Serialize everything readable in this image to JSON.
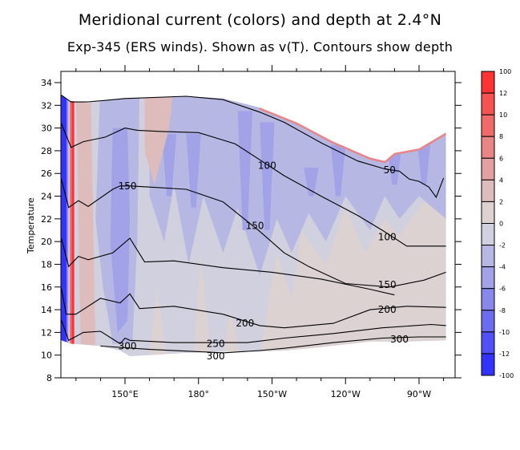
{
  "title": "Meridional current (colors) and depth at 2.4°N",
  "subtitle": "Exp-345 (ERS winds). Shown as v(T). Contours show depth",
  "chart_data": {
    "type": "contour",
    "title": "Meridional current (colors) and depth at 2.4°N",
    "subtitle": "Exp-345 (ERS winds). Shown as v(T). Contours show depth",
    "xlabel": "",
    "ylabel": "Temperature",
    "xlim_deg_east": [
      124,
      281
    ],
    "ylim": [
      8,
      35
    ],
    "x_ticks": [
      {
        "lon": 150,
        "label": "150°E"
      },
      {
        "lon": 180,
        "label": "180°"
      },
      {
        "lon": 210,
        "label": "150°W"
      },
      {
        "lon": 240,
        "label": "120°W"
      },
      {
        "lon": 270,
        "label": "90°W"
      }
    ],
    "x_minor_ticks": [
      130,
      140,
      160,
      170,
      190,
      200,
      220,
      230,
      250,
      260,
      280
    ],
    "y_ticks": [
      8,
      10,
      12,
      14,
      16,
      18,
      20,
      22,
      24,
      26,
      28,
      30,
      32,
      34
    ],
    "colorbar": {
      "labels": [
        "100",
        "12",
        "10",
        "8",
        "6",
        "4",
        "2",
        "0",
        "-2",
        "-4",
        "-6",
        "-8",
        "-10",
        "-12",
        "-100"
      ],
      "colors": [
        "#ff3333",
        "#f65252",
        "#f06a6a",
        "#ea8585",
        "#e3a0a0",
        "#dfbcbc",
        "#dcd2d2",
        "#d0d0de",
        "#b7b7e4",
        "#a2a2e8",
        "#8787ec",
        "#6c6cf1",
        "#5050f6",
        "#3333ff"
      ]
    },
    "field_regions": [
      {
        "level": "0..2",
        "color": "#dcd2d2",
        "note": "background weak northward flow in lower east"
      },
      {
        "level": "-2..0",
        "color": "#d0d0de",
        "note": "dominant background"
      },
      {
        "level": "-4..-2",
        "color": "#b7b7e4",
        "note": "upper central/eastern layer"
      },
      {
        "level": "-6..-4",
        "color": "#a2a2e8",
        "note": "tongues near 150E and 160W-140W"
      },
      {
        "level": "<-12",
        "color": "#3333ff",
        "note": "western boundary strip"
      },
      {
        "level": ">12",
        "color": "#ff3333",
        "note": "western boundary red strip"
      }
    ],
    "surface_top_temperature": [
      [
        124,
        32.9
      ],
      [
        127,
        32.4
      ],
      [
        135,
        32.2
      ],
      [
        150,
        32.6
      ],
      [
        175,
        32.8
      ],
      [
        190,
        32.6
      ],
      [
        205,
        31.8
      ],
      [
        220,
        30.5
      ],
      [
        235,
        28.8
      ],
      [
        250,
        27.4
      ],
      [
        256,
        27.1
      ],
      [
        260,
        27.8
      ],
      [
        270,
        28.2
      ],
      [
        281,
        29.6
      ]
    ],
    "bottom_temperature": [
      [
        124,
        11.3
      ],
      [
        128,
        11.0
      ],
      [
        135,
        10.9
      ],
      [
        140,
        10.8
      ],
      [
        148,
        10.4
      ],
      [
        152,
        9.9
      ],
      [
        160,
        10.0
      ],
      [
        175,
        10.2
      ],
      [
        190,
        10.3
      ],
      [
        205,
        10.3
      ],
      [
        215,
        10.4
      ],
      [
        230,
        10.7
      ],
      [
        250,
        11.2
      ],
      [
        265,
        11.2
      ],
      [
        281,
        11.3
      ]
    ],
    "contours": [
      {
        "depth": 50,
        "points": [
          [
            124,
            32.9
          ],
          [
            128,
            32.3
          ],
          [
            135,
            32.3
          ],
          [
            150,
            32.6
          ],
          [
            175,
            32.8
          ],
          [
            190,
            32.5
          ],
          [
            205,
            31.4
          ],
          [
            215,
            30.5
          ],
          [
            230,
            28.7
          ],
          [
            245,
            27.1
          ],
          [
            256,
            26.4
          ],
          [
            262,
            26.2
          ],
          [
            266,
            25.5
          ],
          [
            270,
            25.3
          ],
          [
            274,
            24.8
          ],
          [
            277,
            23.9
          ],
          [
            280,
            25.6
          ]
        ],
        "labels": [
          {
            "lon": 258,
            "t": 26.3
          }
        ]
      },
      {
        "depth": 100,
        "points": [
          [
            124,
            30.4
          ],
          [
            128,
            28.3
          ],
          [
            133,
            28.8
          ],
          [
            142,
            29.2
          ],
          [
            150,
            30.0
          ],
          [
            155,
            29.8
          ],
          [
            165,
            29.7
          ],
          [
            180,
            29.6
          ],
          [
            195,
            28.6
          ],
          [
            205,
            27.2
          ],
          [
            215,
            25.8
          ],
          [
            230,
            24.0
          ],
          [
            245,
            22.3
          ],
          [
            255,
            21.0
          ],
          [
            265,
            19.6
          ],
          [
            281,
            19.6
          ]
        ],
        "labels": [
          {
            "lon": 208,
            "t": 26.7
          },
          {
            "lon": 257,
            "t": 20.4
          }
        ]
      },
      {
        "depth": 150,
        "points": [
          [
            124,
            25.5
          ],
          [
            127,
            23.0
          ],
          [
            131,
            23.6
          ],
          [
            135,
            23.1
          ],
          [
            145,
            24.6
          ],
          [
            148,
            24.9
          ],
          [
            152,
            24.9
          ],
          [
            160,
            24.8
          ],
          [
            175,
            24.6
          ],
          [
            190,
            23.5
          ],
          [
            205,
            20.9
          ],
          [
            215,
            19.0
          ],
          [
            225,
            17.8
          ],
          [
            240,
            16.3
          ],
          [
            258,
            16.0
          ],
          [
            272,
            16.6
          ],
          [
            281,
            17.3
          ]
        ],
        "labels": [
          {
            "lon": 151,
            "t": 24.9
          },
          {
            "lon": 203,
            "t": 21.4
          },
          {
            "lon": 257,
            "t": 16.2
          }
        ]
      },
      {
        "depth": "150b",
        "points": [
          [
            124,
            20.3
          ],
          [
            127,
            17.8
          ],
          [
            131,
            18.7
          ],
          [
            135,
            18.4
          ],
          [
            145,
            19.0
          ],
          [
            152,
            20.3
          ],
          [
            158,
            18.2
          ],
          [
            170,
            18.3
          ],
          [
            190,
            17.7
          ],
          [
            210,
            17.3
          ],
          [
            230,
            16.7
          ],
          [
            250,
            15.8
          ],
          [
            260,
            15.3
          ]
        ],
        "labels": []
      },
      {
        "depth": 200,
        "points": [
          [
            124,
            15.9
          ],
          [
            126,
            13.6
          ],
          [
            130,
            13.6
          ],
          [
            140,
            15.0
          ],
          [
            148,
            14.6
          ],
          [
            152,
            15.4
          ],
          [
            156,
            14.1
          ],
          [
            170,
            14.3
          ],
          [
            190,
            13.6
          ],
          [
            205,
            12.6
          ],
          [
            215,
            12.4
          ],
          [
            235,
            12.8
          ],
          [
            250,
            14.0
          ],
          [
            265,
            14.3
          ],
          [
            281,
            14.2
          ]
        ],
        "labels": [
          {
            "lon": 199,
            "t": 12.8
          },
          {
            "lon": 257,
            "t": 14.0
          }
        ]
      },
      {
        "depth": 250,
        "points": [
          [
            124,
            13.1
          ],
          [
            127,
            11.3
          ],
          [
            133,
            12.0
          ],
          [
            140,
            12.1
          ],
          [
            148,
            11.0
          ],
          [
            150,
            11.5
          ],
          [
            152,
            11.3
          ],
          [
            170,
            11.1
          ],
          [
            185,
            11.1
          ],
          [
            200,
            11.1
          ],
          [
            215,
            11.5
          ],
          [
            235,
            11.9
          ],
          [
            255,
            12.4
          ],
          [
            275,
            12.7
          ],
          [
            281,
            12.6
          ]
        ],
        "labels": [
          {
            "lon": 187,
            "t": 11.0
          }
        ]
      },
      {
        "depth": 300,
        "points": [
          [
            140,
            10.8
          ],
          [
            160,
            10.5
          ],
          [
            180,
            10.3
          ],
          [
            190,
            10.2
          ],
          [
            205,
            10.4
          ],
          [
            215,
            10.6
          ],
          [
            235,
            11.1
          ],
          [
            255,
            11.5
          ],
          [
            270,
            11.6
          ],
          [
            281,
            11.6
          ]
        ],
        "labels": [
          {
            "lon": 187,
            "t": 9.9
          },
          {
            "lon": 262,
            "t": 11.4
          },
          {
            "lon": 151,
            "t": 10.8
          }
        ]
      }
    ]
  }
}
